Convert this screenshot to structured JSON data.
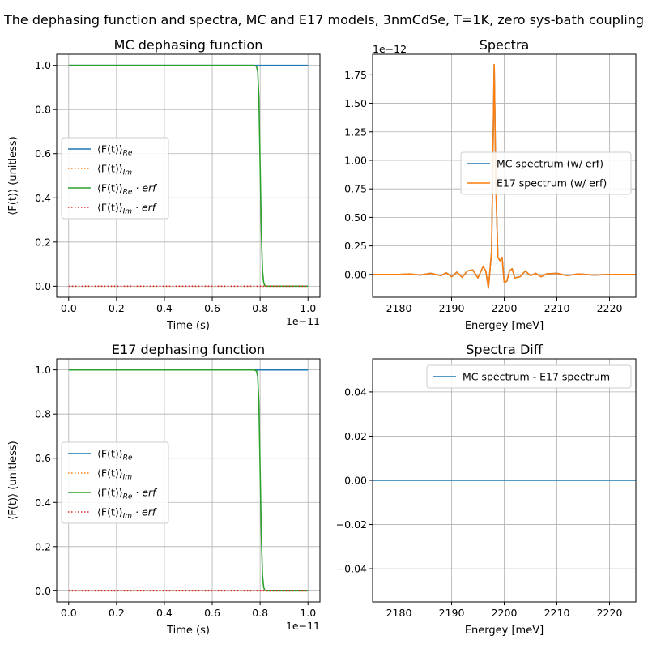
{
  "figure": {
    "suptitle": "The dephasing function and spectra, MC and E17 models, 3nmCdSe, T=1K, zero sys-bath coupling"
  },
  "chart_data": [
    {
      "id": "mc_dephasing",
      "type": "line",
      "title": "MC dephasing function",
      "xlabel": "Time (s)",
      "ylabel": "⟨F(t)⟩ (unitless)",
      "x_offset_text": "1e−11",
      "xlim": [
        -0.05,
        1.05
      ],
      "ylim": [
        -0.05,
        1.05
      ],
      "xticks": [
        0.0,
        0.2,
        0.4,
        0.6,
        0.8,
        1.0
      ],
      "xtick_labels": [
        "0.0",
        "0.2",
        "0.4",
        "0.6",
        "0.8",
        "1.0"
      ],
      "yticks": [
        0.0,
        0.2,
        0.4,
        0.6,
        0.8,
        1.0
      ],
      "ytick_labels": [
        "0.0",
        "0.2",
        "0.4",
        "0.6",
        "0.8",
        "1.0"
      ],
      "grid": true,
      "legend_position": "center-left",
      "series": [
        {
          "name_main": "⟨F(t)⟩",
          "name_sub": "Re",
          "name_tail": "",
          "color": "#1f77b4",
          "style": "solid",
          "x": [
            0.0,
            1.0
          ],
          "y": [
            1.0,
            1.0
          ]
        },
        {
          "name_main": "⟨F(t)⟩",
          "name_sub": "Im",
          "name_tail": "",
          "color": "#ff7f0e",
          "style": "dotted",
          "x": [
            0.0,
            1.0
          ],
          "y": [
            0.0,
            0.0
          ]
        },
        {
          "name_main": "⟨F(t)⟩",
          "name_sub": "Re",
          "name_tail": " · erf",
          "color": "#2ca02c",
          "style": "solid",
          "x": [
            0.0,
            0.775,
            0.785,
            0.79,
            0.795,
            0.8,
            0.805,
            0.81,
            0.815,
            0.82,
            0.825,
            1.0
          ],
          "y": [
            1.0,
            1.0,
            0.995,
            0.97,
            0.85,
            0.55,
            0.25,
            0.07,
            0.015,
            0.003,
            0.0,
            0.0
          ]
        },
        {
          "name_main": "⟨F(t)⟩",
          "name_sub": "Im",
          "name_tail": " · erf",
          "color": "#d62728",
          "style": "dotted",
          "x": [
            0.0,
            1.0
          ],
          "y": [
            0.0,
            0.0
          ]
        }
      ]
    },
    {
      "id": "spectra",
      "type": "line",
      "title": "Spectra",
      "xlabel": "Energey [meV]",
      "ylabel": "",
      "y_offset_text": "1e−12",
      "xlim": [
        2175,
        2225
      ],
      "ylim": [
        -0.2,
        1.93
      ],
      "xticks": [
        2180,
        2190,
        2200,
        2210,
        2220
      ],
      "xtick_labels": [
        "2180",
        "2190",
        "2200",
        "2210",
        "2220"
      ],
      "yticks": [
        0.0,
        0.25,
        0.5,
        0.75,
        1.0,
        1.25,
        1.5,
        1.75
      ],
      "ytick_labels": [
        "0.00",
        "0.25",
        "0.50",
        "0.75",
        "1.00",
        "1.25",
        "1.50",
        "1.75"
      ],
      "grid": true,
      "legend_position": "center-right",
      "series": [
        {
          "name": "MC spectrum (w/ erf)",
          "color": "#1f77b4",
          "style": "solid",
          "x": [
            2175,
            2180,
            2182,
            2184,
            2186,
            2188,
            2189,
            2190,
            2191,
            2192,
            2193,
            2194,
            2195,
            2196,
            2196.5,
            2197,
            2197.6,
            2198.1,
            2198.4,
            2198.8,
            2199.2,
            2199.6,
            2200,
            2200.5,
            2201,
            2201.5,
            2202,
            2203,
            2204,
            2205,
            2206,
            2207,
            2208,
            2210,
            2212,
            2214,
            2217,
            2220,
            2225
          ],
          "y": [
            0.0,
            0.0,
            0.005,
            -0.005,
            0.01,
            -0.01,
            0.015,
            -0.02,
            0.02,
            -0.025,
            0.03,
            0.04,
            -0.03,
            0.07,
            0.03,
            -0.12,
            0.2,
            1.84,
            0.8,
            0.15,
            0.12,
            0.15,
            -0.07,
            -0.06,
            0.03,
            0.05,
            -0.03,
            -0.02,
            0.03,
            -0.01,
            0.01,
            -0.02,
            0.005,
            0.01,
            -0.01,
            0.005,
            -0.005,
            0.0,
            0.0
          ]
        },
        {
          "name": "E17 spectrum (w/ erf)",
          "color": "#ff7f0e",
          "style": "solid",
          "x": [
            2175,
            2180,
            2182,
            2184,
            2186,
            2188,
            2189,
            2190,
            2191,
            2192,
            2193,
            2194,
            2195,
            2196,
            2196.5,
            2197,
            2197.6,
            2198.1,
            2198.4,
            2198.8,
            2199.2,
            2199.6,
            2200,
            2200.5,
            2201,
            2201.5,
            2202,
            2203,
            2204,
            2205,
            2206,
            2207,
            2208,
            2210,
            2212,
            2214,
            2217,
            2220,
            2225
          ],
          "y": [
            0.0,
            0.0,
            0.005,
            -0.005,
            0.01,
            -0.01,
            0.015,
            -0.02,
            0.02,
            -0.025,
            0.03,
            0.04,
            -0.03,
            0.07,
            0.03,
            -0.12,
            0.2,
            1.84,
            0.8,
            0.15,
            0.12,
            0.15,
            -0.07,
            -0.06,
            0.03,
            0.05,
            -0.03,
            -0.02,
            0.03,
            -0.01,
            0.01,
            -0.02,
            0.005,
            0.01,
            -0.01,
            0.005,
            -0.005,
            0.0,
            0.0
          ]
        }
      ]
    },
    {
      "id": "e17_dephasing",
      "type": "line",
      "title": "E17 dephasing function",
      "xlabel": "Time (s)",
      "ylabel": "⟨F(t)⟩ (unitless)",
      "x_offset_text": "1e−11",
      "xlim": [
        -0.05,
        1.05
      ],
      "ylim": [
        -0.05,
        1.05
      ],
      "xticks": [
        0.0,
        0.2,
        0.4,
        0.6,
        0.8,
        1.0
      ],
      "xtick_labels": [
        "0.0",
        "0.2",
        "0.4",
        "0.6",
        "0.8",
        "1.0"
      ],
      "yticks": [
        0.0,
        0.2,
        0.4,
        0.6,
        0.8,
        1.0
      ],
      "ytick_labels": [
        "0.0",
        "0.2",
        "0.4",
        "0.6",
        "0.8",
        "1.0"
      ],
      "grid": true,
      "legend_position": "center-left",
      "series": [
        {
          "name_main": "⟨F(t)⟩",
          "name_sub": "Re",
          "name_tail": "",
          "color": "#1f77b4",
          "style": "solid",
          "x": [
            0.0,
            1.0
          ],
          "y": [
            1.0,
            1.0
          ]
        },
        {
          "name_main": "⟨F(t)⟩",
          "name_sub": "Im",
          "name_tail": "",
          "color": "#ff7f0e",
          "style": "dotted",
          "x": [
            0.0,
            1.0
          ],
          "y": [
            0.0,
            0.0
          ]
        },
        {
          "name_main": "⟨F(t)⟩",
          "name_sub": "Re",
          "name_tail": " · erf",
          "color": "#2ca02c",
          "style": "solid",
          "x": [
            0.0,
            0.775,
            0.785,
            0.79,
            0.795,
            0.8,
            0.805,
            0.81,
            0.815,
            0.82,
            0.825,
            1.0
          ],
          "y": [
            1.0,
            1.0,
            0.995,
            0.97,
            0.85,
            0.55,
            0.25,
            0.07,
            0.015,
            0.003,
            0.0,
            0.0
          ]
        },
        {
          "name_main": "⟨F(t)⟩",
          "name_sub": "Im",
          "name_tail": " · erf",
          "color": "#d62728",
          "style": "dotted",
          "x": [
            0.0,
            1.0
          ],
          "y": [
            0.0,
            0.0
          ]
        }
      ]
    },
    {
      "id": "spectra_diff",
      "type": "line",
      "title": "Spectra Diff",
      "xlabel": "Energey [meV]",
      "ylabel": "",
      "xlim": [
        2175,
        2225
      ],
      "ylim": [
        -0.055,
        0.055
      ],
      "xticks": [
        2180,
        2190,
        2200,
        2210,
        2220
      ],
      "xtick_labels": [
        "2180",
        "2190",
        "2200",
        "2210",
        "2220"
      ],
      "yticks": [
        -0.04,
        -0.02,
        0.0,
        0.02,
        0.04
      ],
      "ytick_labels": [
        "−0.04",
        "−0.02",
        "0.00",
        "0.02",
        "0.04"
      ],
      "grid": true,
      "legend_position": "upper-right",
      "series": [
        {
          "name": "MC spectrum - E17 spectrum",
          "color": "#1f77b4",
          "style": "solid",
          "x": [
            2175,
            2225
          ],
          "y": [
            0.0,
            0.0
          ]
        }
      ]
    }
  ]
}
